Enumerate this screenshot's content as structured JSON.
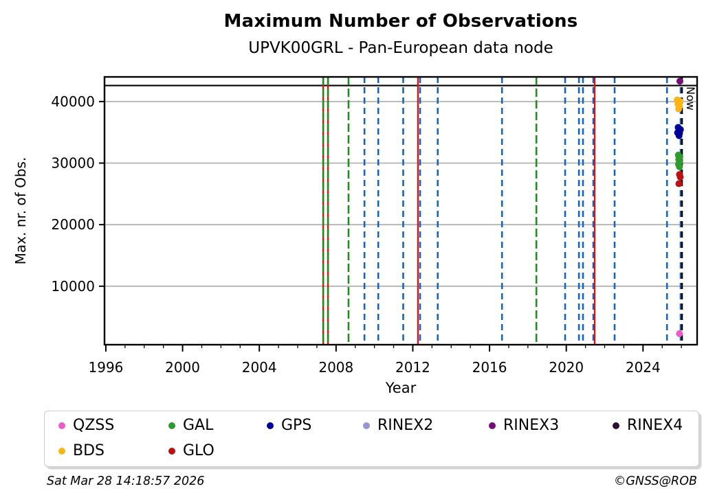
{
  "header": {
    "title": "Maximum Number of Observations",
    "subtitle": "UPVK00GRL - Pan-European data node"
  },
  "footer": {
    "timestamp": "Sat Mar 28 14:18:57 2026",
    "copyright": "©GNSS@ROB"
  },
  "legend": {
    "items": [
      {
        "label": "QZSS",
        "color": "#f05ac8"
      },
      {
        "label": "GAL",
        "color": "#2e9b2e"
      },
      {
        "label": "GPS",
        "color": "#000099"
      },
      {
        "label": "RINEX2",
        "color": "#9595d2"
      },
      {
        "label": "RINEX3",
        "color": "#760d76"
      },
      {
        "label": "RINEX4",
        "color": "#2d0e35"
      },
      {
        "label": "BDS",
        "color": "#fdb515"
      },
      {
        "label": "GLO",
        "color": "#bb1111"
      }
    ]
  },
  "chart_data": {
    "type": "scatter",
    "title": "Maximum Number of Observations",
    "subtitle": "UPVK00GRL - Pan-European data node",
    "xlabel": "Year",
    "ylabel": "Max. nr. of Obs.",
    "xlim": [
      1995.93,
      2026.82
    ],
    "ylim": [
      500,
      44000
    ],
    "x_major_ticks": [
      1996,
      2000,
      2004,
      2008,
      2012,
      2016,
      2020,
      2024
    ],
    "x_minor_tick_step": 1,
    "x_minor_tick_range": [
      1996,
      2026
    ],
    "y_ticks": [
      10000,
      20000,
      30000,
      40000
    ],
    "grid": "horizontal",
    "grid_color": "#b3b3b3",
    "max_line_value": 42600,
    "now": {
      "year": 2026.03,
      "label": "Now"
    },
    "palette": {
      "blue": "#1565c0",
      "green": "#1f8c1f",
      "red": "#e01010",
      "black": "#000000"
    },
    "event_lines": [
      {
        "year": 2007.33,
        "color": "red",
        "style": "solid"
      },
      {
        "year": 2007.33,
        "color": "green",
        "style": "dashed"
      },
      {
        "year": 2007.58,
        "color": "red",
        "style": "solid"
      },
      {
        "year": 2007.58,
        "color": "green",
        "style": "dashed"
      },
      {
        "year": 2008.65,
        "color": "green",
        "style": "dashed"
      },
      {
        "year": 2009.48,
        "color": "blue",
        "style": "dashed"
      },
      {
        "year": 2010.2,
        "color": "blue",
        "style": "dashed"
      },
      {
        "year": 2011.5,
        "color": "blue",
        "style": "dashed"
      },
      {
        "year": 2012.27,
        "color": "red",
        "style": "solid"
      },
      {
        "year": 2012.38,
        "color": "blue",
        "style": "dashed"
      },
      {
        "year": 2013.3,
        "color": "blue",
        "style": "dashed"
      },
      {
        "year": 2016.65,
        "color": "blue",
        "style": "dashed"
      },
      {
        "year": 2018.44,
        "color": "green",
        "style": "dashed"
      },
      {
        "year": 2019.94,
        "color": "blue",
        "style": "dashed"
      },
      {
        "year": 2020.66,
        "color": "blue",
        "style": "dashed"
      },
      {
        "year": 2020.87,
        "color": "blue",
        "style": "dashed"
      },
      {
        "year": 2021.41,
        "color": "blue",
        "style": "dashed"
      },
      {
        "year": 2021.48,
        "color": "red",
        "style": "solid"
      },
      {
        "year": 2022.52,
        "color": "blue",
        "style": "dashed"
      },
      {
        "year": 2025.25,
        "color": "blue",
        "style": "dashed"
      },
      {
        "year": 2025.96,
        "color": "blue",
        "style": "dashed"
      }
    ],
    "series": [
      {
        "name": "RINEX2",
        "points": []
      },
      {
        "name": "RINEX4",
        "points": []
      },
      {
        "name": "RINEX3",
        "points": [
          [
            2025.92,
            43300
          ]
        ]
      },
      {
        "name": "BDS",
        "points": [
          [
            2025.78,
            40250
          ],
          [
            2025.92,
            40050
          ],
          [
            2025.82,
            39600
          ],
          [
            2025.9,
            39250
          ],
          [
            2025.86,
            38800
          ]
        ]
      },
      {
        "name": "GPS",
        "points": [
          [
            2025.83,
            35800
          ],
          [
            2025.95,
            35450
          ],
          [
            2025.8,
            34950
          ],
          [
            2025.88,
            34450
          ]
        ]
      },
      {
        "name": "GAL",
        "points": [
          [
            2025.84,
            31300
          ],
          [
            2025.92,
            31000
          ],
          [
            2025.86,
            30600
          ],
          [
            2025.9,
            30200
          ],
          [
            2025.85,
            29800
          ],
          [
            2025.9,
            29400
          ]
        ]
      },
      {
        "name": "GLO",
        "points": [
          [
            2025.9,
            28150
          ],
          [
            2025.94,
            27750
          ],
          [
            2025.87,
            26650
          ]
        ]
      },
      {
        "name": "QZSS",
        "points": [
          [
            2025.9,
            2300
          ]
        ]
      }
    ]
  }
}
